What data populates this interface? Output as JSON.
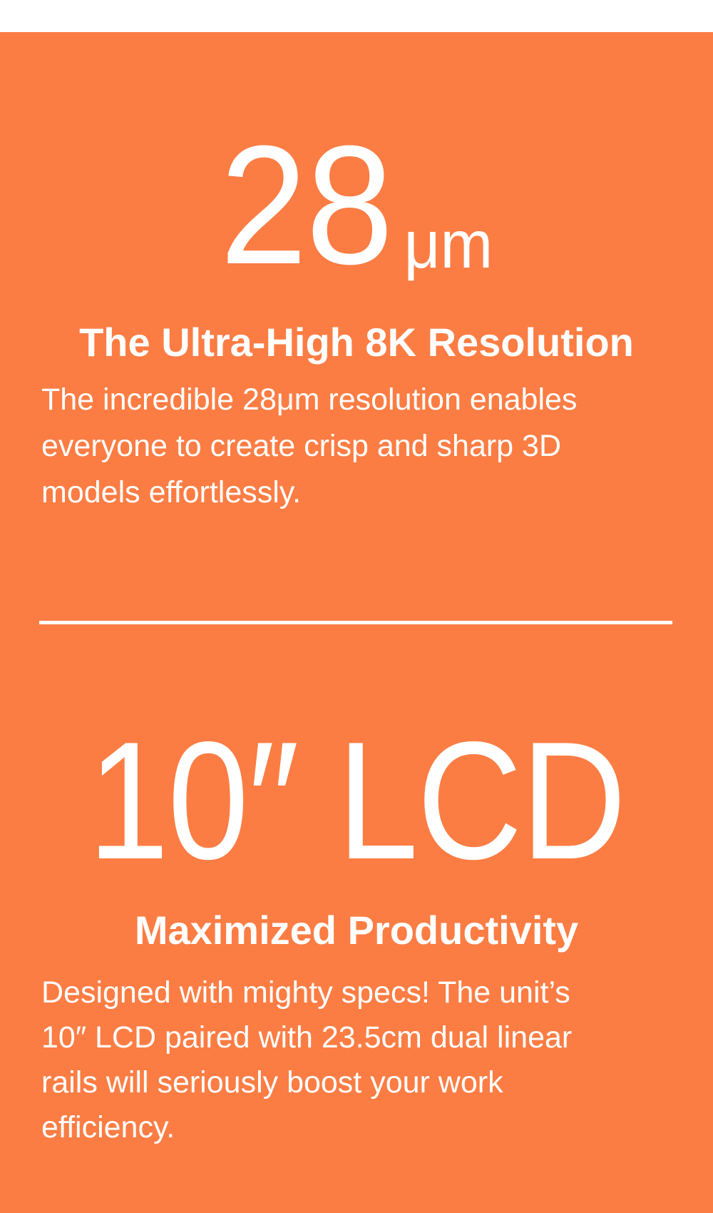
{
  "page": {
    "background_color": "#ffffff",
    "panel_color": "#fb7d44",
    "text_color": "#ffffff"
  },
  "sections": [
    {
      "stat_value": "28",
      "stat_unit": "μm",
      "heading": "The Ultra-High 8K Resolution",
      "body_lines": [
        "The incredible 28μm resolution enables",
        "everyone to create crisp and sharp 3D",
        "models effortlessly."
      ]
    },
    {
      "stat_value": "10″ LCD",
      "heading": "Maximized Productivity",
      "body_lines": [
        "Designed with mighty specs! The unit’s",
        "10″ LCD paired with 23.5cm dual linear",
        "rails will seriously boost your work",
        "efficiency."
      ]
    }
  ]
}
